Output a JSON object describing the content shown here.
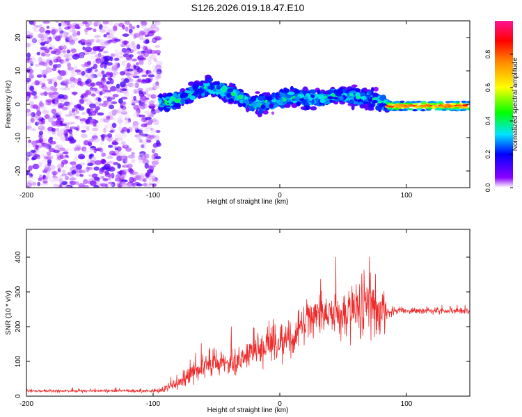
{
  "figure": {
    "title": "S126.2026.019.18.47.E10"
  },
  "chart_data": [
    {
      "type": "heatmap",
      "title": "S126.2026.019.18.47.E10",
      "xlabel": "Height of straight line (km)",
      "ylabel": "Frequency (Hz)",
      "xlim": [
        -200,
        150
      ],
      "ylim": [
        -25,
        25
      ],
      "xticks": [
        -200,
        -100,
        0,
        100
      ],
      "xtick_labels": [
        "-200",
        "-100",
        "0",
        "100"
      ],
      "yticks": [
        -20,
        -10,
        0,
        10,
        20
      ],
      "ytick_labels": [
        "-20",
        "-10",
        "0",
        "10",
        "20"
      ],
      "colorbar": {
        "label": "Normalized spectral amplitude",
        "range": [
          0,
          1
        ],
        "ticks": [
          0.0,
          0.2,
          0.4,
          0.6,
          0.8
        ],
        "tick_labels": [
          "0.0",
          "0.2",
          "0.4",
          "0.6",
          "0.8"
        ],
        "colormap": [
          "#ffffff",
          "#8b00ff",
          "#0000ff",
          "#00e5ff",
          "#00ff00",
          "#ffff00",
          "#ff8c00",
          "#ff0000",
          "#ff1493"
        ]
      },
      "regions": [
        {
          "name": "noise",
          "x_range": [
            -200,
            -95
          ],
          "freq_range": [
            -25,
            25
          ],
          "amplitude": [
            0.02,
            0.2
          ]
        },
        {
          "name": "signal-band",
          "x_range": [
            -95,
            85
          ],
          "freq_range": [
            -5,
            9
          ],
          "amplitude": [
            0.1,
            0.45
          ]
        },
        {
          "name": "steady-line",
          "x_range": [
            85,
            150
          ],
          "freq_range": [
            -2,
            1
          ],
          "amplitude": [
            0.3,
            0.95
          ]
        }
      ],
      "ridge": {
        "x": [
          -95,
          -85,
          -75,
          -65,
          -55,
          -45,
          -35,
          -25,
          -15,
          -5,
          5,
          15,
          25,
          35,
          45,
          55,
          65,
          75,
          85,
          100,
          120,
          150
        ],
        "freq": [
          0,
          1,
          2,
          4,
          5,
          4,
          3,
          0.5,
          0,
          1,
          2,
          2,
          1.5,
          2,
          3,
          2.5,
          2,
          1.5,
          0,
          -0.5,
          -0.5,
          -0.5
        ]
      }
    },
    {
      "type": "line",
      "xlabel": "Height of straight line (km)",
      "ylabel": "SNR (10 * v/v)",
      "xlim": [
        -200,
        150
      ],
      "ylim": [
        0,
        480
      ],
      "xticks": [
        -200,
        -100,
        0,
        100
      ],
      "xtick_labels": [
        "-200",
        "-100",
        "0",
        "100"
      ],
      "yticks": [
        0,
        100,
        200,
        300,
        400
      ],
      "ytick_labels": [
        "0",
        "100",
        "200",
        "300",
        "400"
      ],
      "color": "#ee2b2b",
      "series": [
        {
          "name": "SNR",
          "x": [
            -200,
            -150,
            -100,
            -90,
            -80,
            -70,
            -60,
            -50,
            -40,
            -30,
            -20,
            -10,
            0,
            10,
            20,
            30,
            40,
            50,
            60,
            70,
            80,
            85,
            90,
            100,
            120,
            150
          ],
          "mean": [
            15,
            15,
            15,
            20,
            40,
            65,
            90,
            95,
            95,
            110,
            140,
            145,
            155,
            170,
            215,
            240,
            240,
            240,
            250,
            255,
            250,
            245,
            245,
            245,
            245,
            245
          ],
          "spread": [
            5,
            5,
            6,
            15,
            25,
            40,
            45,
            50,
            50,
            55,
            65,
            75,
            70,
            70,
            75,
            80,
            85,
            95,
            105,
            120,
            110,
            25,
            15,
            12,
            12,
            12
          ]
        }
      ]
    }
  ]
}
